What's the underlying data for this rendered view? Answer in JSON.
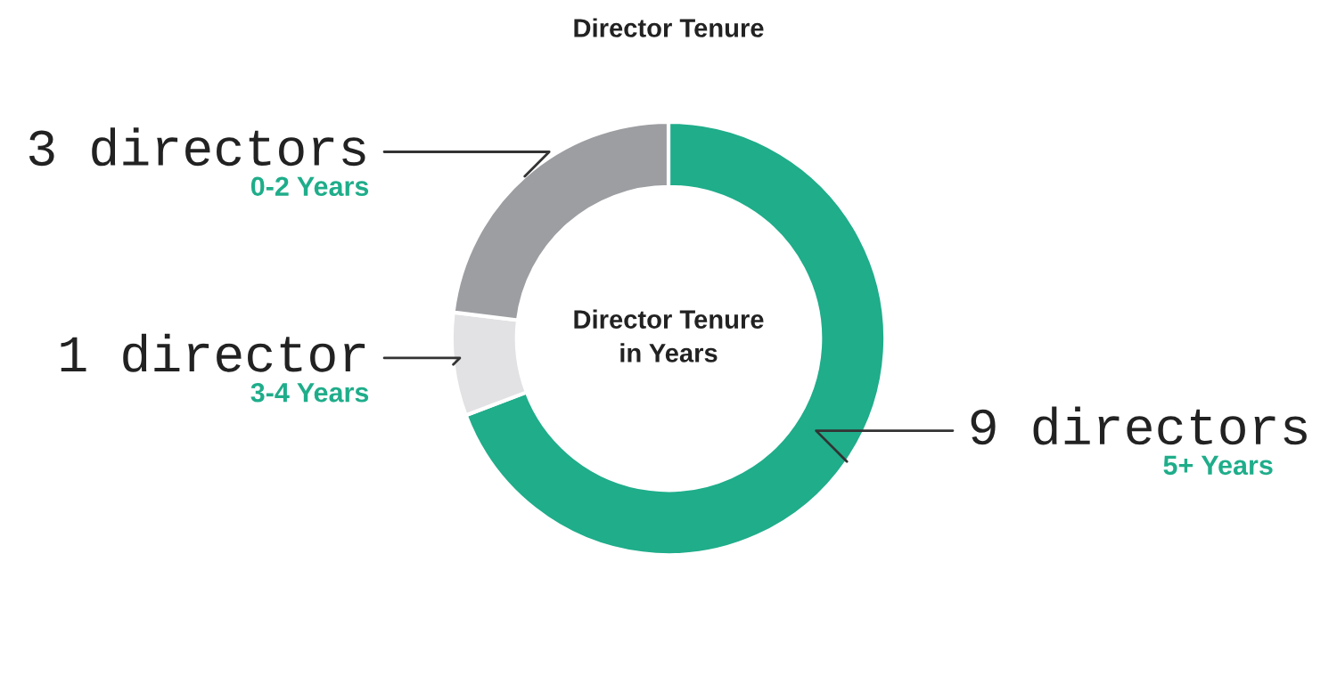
{
  "chart_data": {
    "type": "donut",
    "title": "Director Tenure",
    "categories": [
      "5+ Years",
      "3-4 Years",
      "0-2 Years"
    ],
    "values": [
      9,
      1,
      3
    ],
    "colors": [
      "#1fad8a",
      "#e2e2e4",
      "#9d9ea2"
    ],
    "value_labels": [
      "9 directors",
      "1 director",
      "3 directors"
    ],
    "annotations": [
      "Director Tenure\nin Years"
    ],
    "legend": false
  }
}
